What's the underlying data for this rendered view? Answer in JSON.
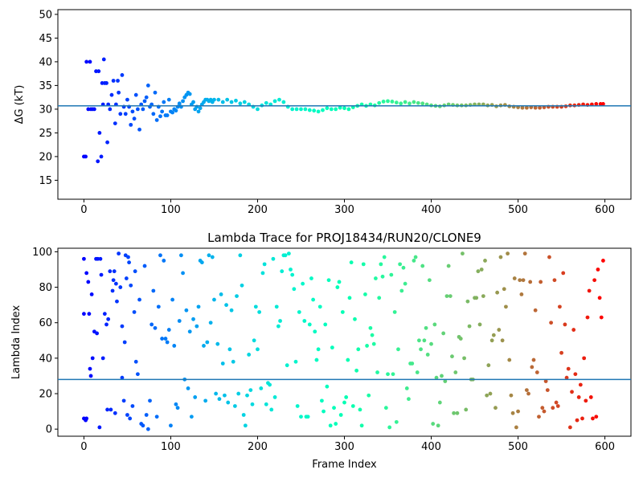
{
  "chart_data": [
    {
      "type": "scatter",
      "title": "",
      "xlabel": "",
      "ylabel": "ΔG (kT)",
      "xlim": [
        -30,
        630
      ],
      "ylim": [
        11,
        51
      ],
      "xticks": [
        "0",
        "100",
        "200",
        "300",
        "400",
        "500",
        "600"
      ],
      "yticks": [
        "15",
        "20",
        "25",
        "30",
        "35",
        "40",
        "45",
        "50"
      ],
      "hline": 30.7,
      "colormap": "rainbow",
      "x_range": [
        0,
        598
      ],
      "hline_color": "#1f77b4",
      "points": [
        [
          0,
          20
        ],
        [
          2,
          20
        ],
        [
          3,
          40
        ],
        [
          5,
          30
        ],
        [
          7,
          40
        ],
        [
          8,
          30
        ],
        [
          10,
          30
        ],
        [
          12,
          30
        ],
        [
          14,
          38
        ],
        [
          16,
          19
        ],
        [
          17,
          38
        ],
        [
          18,
          25
        ],
        [
          20,
          20
        ],
        [
          21,
          35.5
        ],
        [
          22,
          31
        ],
        [
          23,
          40.5
        ],
        [
          24,
          35.5
        ],
        [
          26,
          35.5
        ],
        [
          27,
          23
        ],
        [
          28,
          31
        ],
        [
          30,
          30
        ],
        [
          32,
          33
        ],
        [
          34,
          36
        ],
        [
          36,
          27
        ],
        [
          37,
          31
        ],
        [
          39,
          36
        ],
        [
          40,
          33.5
        ],
        [
          42,
          29
        ],
        [
          44,
          37.2
        ],
        [
          46,
          30.5
        ],
        [
          48,
          29
        ],
        [
          50,
          32
        ],
        [
          52,
          30.5
        ],
        [
          54,
          26.7
        ],
        [
          56,
          29.5
        ],
        [
          58,
          28
        ],
        [
          60,
          33
        ],
        [
          62,
          30
        ],
        [
          64,
          25.7
        ],
        [
          66,
          31
        ],
        [
          68,
          30
        ],
        [
          70,
          31.7
        ],
        [
          72,
          32.5
        ],
        [
          74,
          35
        ],
        [
          76,
          30.5
        ],
        [
          78,
          31
        ],
        [
          80,
          29
        ],
        [
          82,
          33.5
        ],
        [
          84,
          27.7
        ],
        [
          86,
          30.5
        ],
        [
          88,
          28.5
        ],
        [
          90,
          29.5
        ],
        [
          92,
          31.5
        ],
        [
          94,
          28.7
        ],
        [
          96,
          28.7
        ],
        [
          98,
          32
        ],
        [
          100,
          29.5
        ],
        [
          102,
          29.3
        ],
        [
          104,
          30
        ],
        [
          106,
          29.7
        ],
        [
          108,
          30.5
        ],
        [
          110,
          31.2
        ],
        [
          112,
          30.5
        ],
        [
          114,
          31.7
        ],
        [
          116,
          32.5
        ],
        [
          118,
          33
        ],
        [
          120,
          33.5
        ],
        [
          122,
          33.2
        ],
        [
          124,
          31
        ],
        [
          126,
          31.5
        ],
        [
          128,
          30
        ],
        [
          130,
          30.5
        ],
        [
          132,
          29.5
        ],
        [
          134,
          30.2
        ],
        [
          136,
          31
        ],
        [
          138,
          31.5
        ],
        [
          140,
          32
        ],
        [
          142,
          32
        ],
        [
          144,
          31.7
        ],
        [
          146,
          32
        ],
        [
          148,
          31.5
        ],
        [
          150,
          32
        ],
        [
          155,
          32
        ],
        [
          160,
          31.5
        ],
        [
          165,
          32
        ],
        [
          170,
          31.5
        ],
        [
          175,
          31.8
        ],
        [
          180,
          31.2
        ],
        [
          185,
          31.5
        ],
        [
          190,
          31
        ],
        [
          195,
          30.5
        ],
        [
          200,
          30
        ],
        [
          205,
          30.8
        ],
        [
          210,
          31.3
        ],
        [
          215,
          31
        ],
        [
          220,
          31.7
        ],
        [
          225,
          32
        ],
        [
          230,
          31.5
        ],
        [
          235,
          30.5
        ],
        [
          240,
          30
        ],
        [
          245,
          30
        ],
        [
          250,
          30
        ],
        [
          255,
          30
        ],
        [
          260,
          29.8
        ],
        [
          265,
          29.7
        ],
        [
          270,
          29.5
        ],
        [
          275,
          29.8
        ],
        [
          280,
          30.2
        ],
        [
          285,
          30
        ],
        [
          290,
          30
        ],
        [
          295,
          30.3
        ],
        [
          300,
          30.2
        ],
        [
          305,
          30
        ],
        [
          310,
          30.4
        ],
        [
          315,
          30.7
        ],
        [
          320,
          31
        ],
        [
          325,
          30.7
        ],
        [
          330,
          31
        ],
        [
          335,
          30.8
        ],
        [
          340,
          31.3
        ],
        [
          345,
          31.6
        ],
        [
          350,
          31.7
        ],
        [
          355,
          31.6
        ],
        [
          360,
          31.4
        ],
        [
          365,
          31.2
        ],
        [
          370,
          31.5
        ],
        [
          375,
          31.2
        ],
        [
          380,
          31.5
        ],
        [
          385,
          31.3
        ],
        [
          390,
          31.2
        ],
        [
          395,
          31
        ],
        [
          400,
          30.8
        ],
        [
          405,
          30.7
        ],
        [
          410,
          30.6
        ],
        [
          415,
          30.8
        ],
        [
          420,
          31
        ],
        [
          425,
          30.9
        ],
        [
          430,
          30.8
        ],
        [
          435,
          30.8
        ],
        [
          440,
          30.8
        ],
        [
          445,
          30.9
        ],
        [
          450,
          31
        ],
        [
          455,
          31
        ],
        [
          460,
          31
        ],
        [
          465,
          30.8
        ],
        [
          470,
          30.9
        ],
        [
          475,
          30.6
        ],
        [
          480,
          30.8
        ],
        [
          485,
          30.9
        ],
        [
          490,
          30.6
        ],
        [
          495,
          30.5
        ],
        [
          500,
          30.4
        ],
        [
          505,
          30.3
        ],
        [
          510,
          30.3
        ],
        [
          515,
          30.4
        ],
        [
          520,
          30.3
        ],
        [
          525,
          30.3
        ],
        [
          530,
          30.4
        ],
        [
          535,
          30.5
        ],
        [
          540,
          30.5
        ],
        [
          545,
          30.5
        ],
        [
          550,
          30.5
        ],
        [
          555,
          30.6
        ],
        [
          560,
          30.8
        ],
        [
          565,
          30.8
        ],
        [
          570,
          30.9
        ],
        [
          575,
          31
        ],
        [
          580,
          30.9
        ],
        [
          585,
          31
        ],
        [
          590,
          31.1
        ],
        [
          595,
          31.1
        ],
        [
          598,
          31.1
        ]
      ]
    },
    {
      "type": "scatter",
      "title": "Lambda Trace for PROJ18434/RUN20/CLONE9",
      "xlabel": "Frame Index",
      "ylabel": "Lambda Index",
      "xlim": [
        -30,
        630
      ],
      "ylim": [
        -4,
        102
      ],
      "xticks": [
        "0",
        "100",
        "200",
        "300",
        "400",
        "500",
        "600"
      ],
      "yticks": [
        "0",
        "20",
        "40",
        "60",
        "80",
        "100"
      ],
      "hline": 28,
      "colormap": "rainbow",
      "x_range": [
        0,
        598
      ],
      "hline_color": "#1f77b4",
      "seed": 18434,
      "points_note_excluded": true,
      "points_first": [
        [
          0,
          6
        ],
        [
          0,
          96
        ],
        [
          0,
          65
        ],
        [
          2,
          5
        ],
        [
          3,
          88
        ],
        [
          3,
          6
        ],
        [
          5,
          83
        ],
        [
          6,
          65
        ],
        [
          7,
          34
        ],
        [
          8,
          30
        ],
        [
          9,
          76
        ],
        [
          10,
          40
        ],
        [
          12,
          55
        ],
        [
          14,
          96
        ],
        [
          15,
          54
        ],
        [
          16,
          96
        ],
        [
          18,
          1
        ],
        [
          19,
          96
        ],
        [
          20,
          87
        ],
        [
          22,
          40
        ],
        [
          24,
          65
        ],
        [
          26,
          59
        ],
        [
          27,
          11
        ],
        [
          28,
          62
        ],
        [
          30,
          89
        ],
        [
          31,
          11
        ],
        [
          33,
          78
        ],
        [
          34,
          84
        ],
        [
          35,
          89
        ],
        [
          36,
          9
        ],
        [
          37,
          82
        ],
        [
          38,
          72
        ],
        [
          40,
          99
        ],
        [
          42,
          80
        ],
        [
          44,
          58
        ],
        [
          44,
          29
        ],
        [
          46,
          16
        ],
        [
          47,
          49
        ],
        [
          48,
          98
        ],
        [
          49,
          85
        ],
        [
          50,
          8
        ],
        [
          51,
          97
        ],
        [
          52,
          94
        ],
        [
          53,
          6
        ],
        [
          54,
          81
        ],
        [
          56,
          13
        ],
        [
          58,
          66
        ],
        [
          59,
          89
        ]
      ]
    }
  ]
}
